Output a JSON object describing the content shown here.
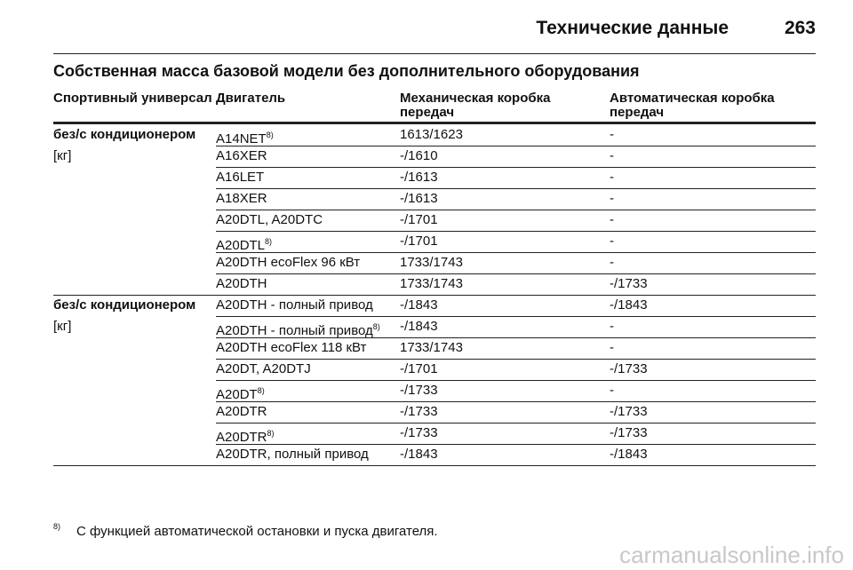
{
  "header": {
    "title": "Технические данные",
    "page": "263"
  },
  "section_title": "Собственная масса базовой модели без дополнительного оборудования",
  "table": {
    "columns": [
      "Спортивный универсал",
      "Двигатель",
      "Механическая коробка передач",
      "Автоматическая коробка передач"
    ],
    "groups": [
      {
        "label": "без/с кондиционером",
        "unit": "[кг]",
        "rows": [
          {
            "engine": "A14NET",
            "note": "8)",
            "manual": "1613/1623",
            "auto": "-"
          },
          {
            "engine": "A16XER",
            "manual": "-/1610",
            "auto": "-"
          },
          {
            "engine": "A16LET",
            "manual": "-/1613",
            "auto": "-"
          },
          {
            "engine": "A18XER",
            "manual": "-/1613",
            "auto": "-"
          },
          {
            "engine": "A20DTL, A20DTC",
            "manual": "-/1701",
            "auto": "-"
          },
          {
            "engine": "A20DTL",
            "note": "8)",
            "manual": "-/1701",
            "auto": "-"
          },
          {
            "engine": "A20DTH ecoFlex 96 кВт",
            "manual": "1733/1743",
            "auto": "-"
          },
          {
            "engine": "A20DTH",
            "manual": "1733/1743",
            "auto": "-/1733"
          }
        ]
      },
      {
        "label": "без/с кондиционером",
        "unit": "[кг]",
        "rows": [
          {
            "engine": "A20DTH - полный привод",
            "manual": "-/1843",
            "auto": "-/1843"
          },
          {
            "engine": "A20DTH - полный привод",
            "note": "8)",
            "manual": "-/1843",
            "auto": "-"
          },
          {
            "engine": "A20DTH ecoFlex 118 кВт",
            "manual": "1733/1743",
            "auto": "-"
          },
          {
            "engine": "A20DT, A20DTJ",
            "manual": "-/1701",
            "auto": "-/1733"
          },
          {
            "engine": "A20DT",
            "note": "8)",
            "manual": "-/1733",
            "auto": "-"
          },
          {
            "engine": "A20DTR",
            "manual": "-/1733",
            "auto": "-/1733"
          },
          {
            "engine": "A20DTR",
            "note": "8)",
            "manual": "-/1733",
            "auto": "-/1733"
          },
          {
            "engine": "A20DTR, полный привод",
            "manual": "-/1843",
            "auto": "-/1843"
          }
        ]
      }
    ]
  },
  "footnote": {
    "mark": "8)",
    "text": "С функцией автоматической остановки и пуска двигателя."
  },
  "watermark": "carmanualsonline.info"
}
